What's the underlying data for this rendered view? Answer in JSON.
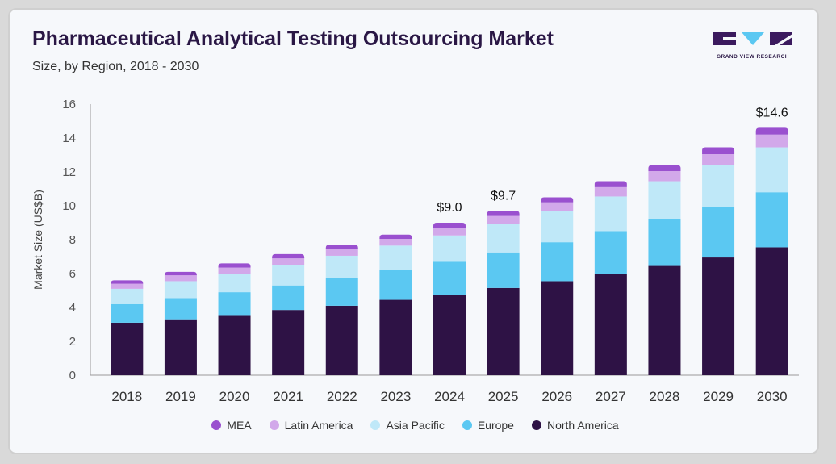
{
  "header": {
    "title": "Pharmaceutical Analytical Testing Outsourcing Market",
    "subtitle": "Size, by Region, 2018 - 2030"
  },
  "logo": {
    "text": "GRAND VIEW RESEARCH"
  },
  "chart_data": {
    "type": "bar",
    "stacked": true,
    "categories": [
      "2018",
      "2019",
      "2020",
      "2021",
      "2022",
      "2023",
      "2024",
      "2025",
      "2026",
      "2027",
      "2028",
      "2029",
      "2030"
    ],
    "ylabel": "Market Size (US$B)",
    "ylim": [
      0,
      16
    ],
    "yticks": [
      0,
      2,
      4,
      6,
      8,
      10,
      12,
      14,
      16
    ],
    "legend_position": "bottom",
    "series": [
      {
        "name": "North America",
        "color": "#2e1245",
        "values": [
          3.1,
          3.3,
          3.55,
          3.85,
          4.1,
          4.45,
          4.75,
          5.15,
          5.55,
          6.0,
          6.45,
          6.95,
          7.55
        ]
      },
      {
        "name": "Europe",
        "color": "#5bc8f2",
        "values": [
          1.1,
          1.25,
          1.35,
          1.45,
          1.65,
          1.75,
          1.95,
          2.1,
          2.3,
          2.5,
          2.75,
          3.0,
          3.25
        ]
      },
      {
        "name": "Asia Pacific",
        "color": "#bfe8f8",
        "values": [
          0.9,
          1.0,
          1.1,
          1.2,
          1.3,
          1.45,
          1.55,
          1.7,
          1.85,
          2.05,
          2.25,
          2.45,
          2.65
        ]
      },
      {
        "name": "Latin America",
        "color": "#d2a8ea",
        "values": [
          0.3,
          0.35,
          0.35,
          0.4,
          0.4,
          0.4,
          0.45,
          0.45,
          0.5,
          0.55,
          0.6,
          0.65,
          0.75
        ]
      },
      {
        "name": "MEA",
        "color": "#9a50cf",
        "values": [
          0.2,
          0.2,
          0.25,
          0.25,
          0.25,
          0.25,
          0.3,
          0.3,
          0.3,
          0.35,
          0.35,
          0.4,
          0.4
        ]
      }
    ],
    "totals_labels": [
      {
        "category": "2024",
        "text": "$9.0",
        "value": 9.0
      },
      {
        "category": "2025",
        "text": "$9.7",
        "value": 9.7
      },
      {
        "category": "2030",
        "text": "$14.6",
        "value": 14.6
      }
    ],
    "legend_order": [
      "MEA",
      "Latin America",
      "Asia Pacific",
      "Europe",
      "North America"
    ]
  }
}
